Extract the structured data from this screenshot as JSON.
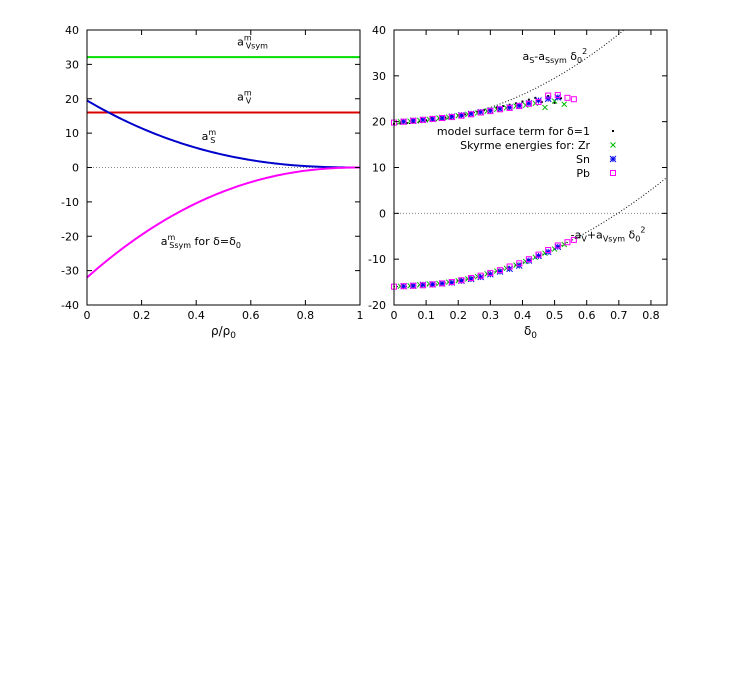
{
  "chart_data": [
    {
      "type": "line",
      "panel": "left",
      "xlabel": "ρ/ρ",
      "xlabel_sub": "0",
      "ylabel": "",
      "xlim": [
        0,
        1
      ],
      "ylim": [
        -40,
        40
      ],
      "xticks": [
        0,
        0.2,
        0.4,
        0.6,
        0.8,
        1
      ],
      "xtick_labels": [
        "0",
        "0.2",
        "0.4",
        "0.6",
        "0.8",
        "1"
      ],
      "yticks": [
        -40,
        -30,
        -20,
        -10,
        0,
        10,
        20,
        30,
        40
      ],
      "ytick_labels": [
        "-40",
        "-30",
        "-20",
        "-10",
        "0",
        "10",
        "20",
        "30",
        "40"
      ],
      "zero_line": true,
      "series": [
        {
          "key": "aVsym",
          "color": "#00dd00",
          "kind": "const",
          "value": 32.1
        },
        {
          "key": "aV",
          "color": "#dd0000",
          "kind": "const",
          "value": 16.0
        },
        {
          "key": "aS",
          "color": "#0000cc",
          "kind": "poly",
          "a0": 19.5,
          "exp": 2.4
        },
        {
          "key": "aSsym",
          "color": "#ff00ff",
          "kind": "poly",
          "a0": -32.0,
          "exp": 2.2
        }
      ],
      "labels": {
        "aVsym": {
          "main": "a",
          "sup": "m",
          "sub": "Vsym",
          "x": 0.55,
          "y": 35.5
        },
        "aV": {
          "main": "a",
          "sup": "m",
          "sub": "V",
          "x": 0.55,
          "y": 19.5
        },
        "aS": {
          "main": "a",
          "sup": "m",
          "sub": "S",
          "x": 0.42,
          "y": 8.0
        },
        "aSsym": {
          "main": "a",
          "sup": "m",
          "sub": "Ssym",
          "tail": " for δ=δ",
          "tail_sub": "0",
          "x": 0.27,
          "y": -22.5
        }
      }
    },
    {
      "type": "scatter",
      "panel": "right",
      "xlabel": "δ",
      "xlabel_sub": "0",
      "ylabel": "",
      "xlim": [
        0,
        0.85
      ],
      "ylim": [
        -20,
        40
      ],
      "xticks": [
        0,
        0.1,
        0.2,
        0.3,
        0.4,
        0.5,
        0.6,
        0.7,
        0.8
      ],
      "xtick_labels": [
        "0",
        "0.1",
        "0.2",
        "0.3",
        "0.4",
        "0.5",
        "0.6",
        "0.7",
        "0.8"
      ],
      "yticks": [
        -20,
        -10,
        0,
        10,
        20,
        30,
        40
      ],
      "ytick_labels": [
        "-20",
        "-10",
        "0",
        "10",
        "20",
        "30",
        "40"
      ],
      "zero_line": true,
      "curves": [
        {
          "key": "upper",
          "a0": 19.5,
          "a2": 40.0,
          "style": "dotted"
        },
        {
          "key": "lower",
          "a0": -16.0,
          "a2": 33.0,
          "style": "dotted"
        }
      ],
      "curve_labels": {
        "upper": {
          "text1": "a",
          "sub1": "S",
          "text2": "-a",
          "sub2": "Ssym",
          "text3": " δ",
          "sub3": "0",
          "sup3": "2",
          "x": 0.4,
          "y": 33.5
        },
        "lower": {
          "text1": "-a",
          "sub1": "V",
          "text2": "+a",
          "sub2": "Vsym",
          "text3": " δ",
          "sub3": "0",
          "sup3": "2",
          "x": 0.55,
          "y": -5.5
        }
      },
      "legend": {
        "position": "upper-right",
        "entries": [
          {
            "label": "model surface term for δ=1",
            "marker": "dot",
            "color": "#000000"
          },
          {
            "label": "Skyrme energies for:  Zr",
            "marker": "x",
            "color": "#00bb00"
          },
          {
            "label": "Sn",
            "marker": "star",
            "color": "#0000ee"
          },
          {
            "label": "Pb",
            "marker": "square",
            "color": "#ff00ff"
          }
        ]
      },
      "series": [
        {
          "name": "model surface term for δ=1",
          "marker": "dot",
          "color": "#000000",
          "x": [
            0.0,
            0.02,
            0.04,
            0.06,
            0.08,
            0.1,
            0.12,
            0.14,
            0.16,
            0.18,
            0.2,
            0.22,
            0.24,
            0.26,
            0.28,
            0.3,
            0.32,
            0.34,
            0.36,
            0.38,
            0.4,
            0.42,
            0.44,
            0.46,
            0.48,
            0.5,
            0.52
          ],
          "y": [
            19.5,
            19.6,
            19.7,
            19.9,
            20.1,
            20.3,
            20.5,
            20.7,
            20.9,
            21.2,
            21.4,
            21.6,
            21.9,
            22.2,
            22.5,
            22.8,
            23.1,
            23.4,
            23.7,
            24.0,
            24.4,
            24.8,
            25.2,
            24.3,
            25.6,
            24.1,
            25.1
          ]
        },
        {
          "name": "Zr",
          "marker": "x",
          "color": "#00bb00",
          "x": [
            0.02,
            0.05,
            0.08,
            0.11,
            0.14,
            0.17,
            0.2,
            0.23,
            0.26,
            0.29,
            0.32,
            0.35,
            0.38,
            0.41,
            0.44,
            0.47,
            0.5,
            0.53
          ],
          "y": [
            20.0,
            20.1,
            20.3,
            20.5,
            20.8,
            21.0,
            21.3,
            21.6,
            21.9,
            22.3,
            22.7,
            23.0,
            23.4,
            23.6,
            24.0,
            23.1,
            24.5,
            23.8
          ],
          "x_lower": [
            0.02,
            0.05,
            0.08,
            0.11,
            0.14,
            0.17,
            0.2,
            0.23,
            0.26,
            0.29,
            0.32,
            0.35,
            0.38,
            0.41,
            0.44,
            0.47,
            0.5,
            0.53
          ],
          "y_lower": [
            -15.9,
            -15.8,
            -15.6,
            -15.4,
            -15.3,
            -15.0,
            -14.7,
            -14.3,
            -13.8,
            -13.2,
            -12.6,
            -12.0,
            -11.3,
            -10.5,
            -9.6,
            -8.7,
            -7.8,
            -6.8
          ]
        },
        {
          "name": "Sn",
          "marker": "star",
          "color": "#0000ee",
          "x": [
            0.03,
            0.06,
            0.09,
            0.12,
            0.15,
            0.18,
            0.21,
            0.24,
            0.27,
            0.3,
            0.33,
            0.36,
            0.39,
            0.42,
            0.45,
            0.48,
            0.51
          ],
          "y": [
            20.0,
            20.2,
            20.4,
            20.6,
            20.8,
            21.1,
            21.4,
            21.7,
            22.1,
            22.4,
            22.8,
            23.1,
            23.5,
            24.0,
            24.6,
            25.0,
            25.3
          ],
          "x_lower": [
            0.03,
            0.06,
            0.09,
            0.12,
            0.15,
            0.18,
            0.21,
            0.24,
            0.27,
            0.3,
            0.33,
            0.36,
            0.39,
            0.42,
            0.45,
            0.48,
            0.51
          ],
          "y_lower": [
            -15.9,
            -15.8,
            -15.6,
            -15.5,
            -15.3,
            -15.1,
            -14.7,
            -14.3,
            -13.9,
            -13.3,
            -12.7,
            -12.1,
            -11.4,
            -10.3,
            -9.3,
            -8.4,
            -7.3
          ]
        },
        {
          "name": "Pb",
          "marker": "square",
          "color": "#ff00ff",
          "x": [
            0.0,
            0.03,
            0.06,
            0.09,
            0.12,
            0.15,
            0.18,
            0.21,
            0.24,
            0.27,
            0.3,
            0.33,
            0.36,
            0.39,
            0.42,
            0.45,
            0.48,
            0.51,
            0.54,
            0.56
          ],
          "y": [
            19.8,
            20.0,
            20.2,
            20.4,
            20.6,
            20.8,
            21.0,
            21.3,
            21.6,
            22.0,
            22.3,
            22.7,
            23.0,
            23.4,
            23.9,
            24.3,
            25.7,
            25.8,
            25.2,
            24.9
          ],
          "x_lower": [
            0.0,
            0.03,
            0.06,
            0.09,
            0.12,
            0.15,
            0.18,
            0.21,
            0.24,
            0.27,
            0.3,
            0.33,
            0.36,
            0.39,
            0.42,
            0.45,
            0.48,
            0.51,
            0.54,
            0.56
          ],
          "y_lower": [
            -16.0,
            -15.9,
            -15.8,
            -15.7,
            -15.5,
            -15.3,
            -15.0,
            -14.6,
            -14.1,
            -13.6,
            -13.0,
            -12.4,
            -11.6,
            -10.9,
            -10.0,
            -9.0,
            -8.0,
            -7.0,
            -6.3,
            -5.8
          ]
        }
      ]
    }
  ]
}
